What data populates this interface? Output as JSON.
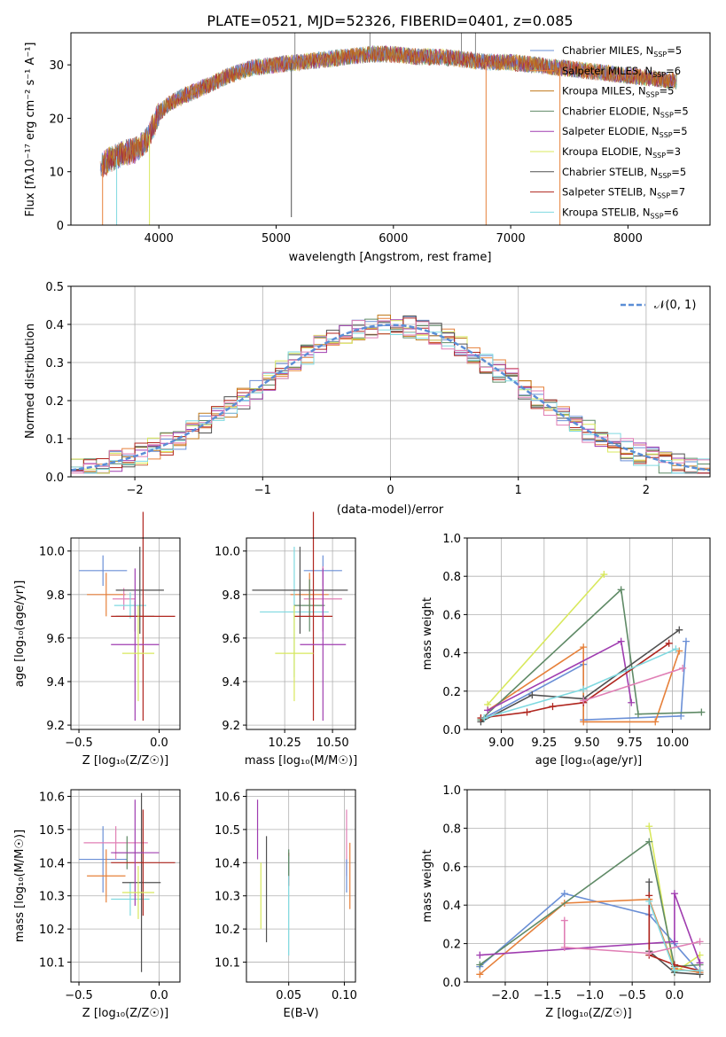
{
  "title": "PLATE=0521, MJD=52326, FIBERID=0401, z=0.085",
  "colors": {
    "c_miles": "#6a8fd6",
    "s_miles": "#e6803a",
    "k_miles": "#c07a1c",
    "c_elodie": "#5f8a66",
    "s_elodie": "#a03db0",
    "k_elodie": "#d8e85c",
    "c_stelib": "#505050",
    "s_stelib": "#b0261f",
    "k_stelib": "#7fd9e0",
    "pink": "#e07fb5"
  },
  "panels": {
    "spectrum": {
      "xlabel": "wavelength [Angstrom, rest frame]",
      "ylabel": "Flux [fλ10⁻¹⁷ erg cm⁻² s⁻¹ A⁻¹]",
      "xticks": [
        "4000",
        "5000",
        "6000",
        "7000",
        "8000"
      ],
      "yticks": [
        "0",
        "10",
        "20",
        "30"
      ],
      "legend": [
        {
          "label": "Chabrier MILES, N",
          "sub": "SSP",
          "tail": "=5",
          "color": "c_miles"
        },
        {
          "label": "Salpeter MILES, N",
          "sub": "SSP",
          "tail": "=6",
          "color": "s_miles"
        },
        {
          "label": "Kroupa MILES, N",
          "sub": "SSP",
          "tail": "=5",
          "color": "k_miles"
        },
        {
          "label": "Chabrier ELODIE, N",
          "sub": "SSP",
          "tail": "=5",
          "color": "c_elodie"
        },
        {
          "label": "Salpeter ELODIE, N",
          "sub": "SSP",
          "tail": "=5",
          "color": "s_elodie"
        },
        {
          "label": "Kroupa ELODIE, N",
          "sub": "SSP",
          "tail": "=3",
          "color": "k_elodie"
        },
        {
          "label": "Chabrier STELIB, N",
          "sub": "SSP",
          "tail": "=5",
          "color": "c_stelib"
        },
        {
          "label": "Salpeter STELIB, N",
          "sub": "SSP",
          "tail": "=7",
          "color": "s_stelib"
        },
        {
          "label": "Kroupa STELIB, N",
          "sub": "SSP",
          "tail": "=6",
          "color": "k_stelib"
        }
      ]
    },
    "hist": {
      "xlabel": "(data-model)/error",
      "ylabel": "Normed distribution",
      "xticks": [
        "−2",
        "−1",
        "0",
        "1",
        "2"
      ],
      "yticks": [
        "0.0",
        "0.1",
        "0.2",
        "0.3",
        "0.4",
        "0.5"
      ],
      "legend_label": "𝒩(0, 1)"
    },
    "z_age": {
      "xlabel": "Z [log₁₀(Z/Z☉)]",
      "ylabel": "age  [log₁₀(age/yr)]",
      "xticks": [
        "−0.5",
        "0.0"
      ],
      "yticks": [
        "9.2",
        "9.4",
        "9.6",
        "9.8",
        "10.0"
      ]
    },
    "mass_age": {
      "xlabel": "mass [log₁₀(M/M☉)]",
      "xticks": [
        "10.25",
        "10.50"
      ],
      "yticks": [
        "9.2",
        "9.4",
        "9.6",
        "9.8",
        "10.0"
      ]
    },
    "age_weight": {
      "xlabel": "age  [log₁₀(age/yr)]",
      "ylabel": "mass weight",
      "xticks": [
        "9.00",
        "9.25",
        "9.50",
        "9.75",
        "10.00"
      ],
      "yticks": [
        "0.0",
        "0.2",
        "0.4",
        "0.6",
        "0.8",
        "1.0"
      ]
    },
    "z_mass": {
      "xlabel": "Z [log₁₀(Z/Z☉)]",
      "ylabel": "mass [log₁₀(M/M☉)]",
      "xticks": [
        "−0.5",
        "0.0"
      ],
      "yticks": [
        "10.1",
        "10.2",
        "10.3",
        "10.4",
        "10.5",
        "10.6"
      ]
    },
    "ebv_mass": {
      "xlabel": "E(B-V)",
      "xticks": [
        "0.05",
        "0.10"
      ],
      "yticks": [
        "10.1",
        "10.2",
        "10.3",
        "10.4",
        "10.5",
        "10.6"
      ]
    },
    "z_weight": {
      "xlabel": "Z [log₁₀(Z/Z☉)]",
      "ylabel": "mass weight",
      "xticks": [
        "−2.0",
        "−1.5",
        "−1.0",
        "−0.5",
        "0.0"
      ],
      "yticks": [
        "0.0",
        "0.2",
        "0.4",
        "0.6",
        "0.8",
        "1.0"
      ]
    }
  },
  "chart_data": [
    {
      "type": "line",
      "title": "PLATE=0521, MJD=52326, FIBERID=0401, z=0.085",
      "xlabel": "wavelength [Angstrom, rest frame]",
      "ylabel": "Flux [fλ10⁻¹⁷ erg cm⁻² s⁻¹ A⁻¹]",
      "xlim": [
        3250,
        8700
      ],
      "ylim": [
        0,
        36
      ],
      "grid": false,
      "legend_position": "right",
      "continuum": {
        "x": [
          3500,
          3600,
          3700,
          3800,
          3900,
          4000,
          4100,
          4200,
          4400,
          4600,
          4800,
          5000,
          5200,
          5400,
          5600,
          5800,
          6000,
          6200,
          6400,
          6600,
          6800,
          7000,
          7200,
          7400,
          7600,
          7800,
          8000,
          8200,
          8400
        ],
        "y": [
          11,
          12.5,
          13.5,
          14,
          16,
          21,
          23,
          24,
          26,
          28,
          29.5,
          30,
          30.5,
          31,
          31.5,
          32,
          32,
          31.5,
          31.5,
          31,
          30.5,
          30.5,
          30,
          29.5,
          29,
          28.5,
          28,
          27.5,
          27
        ]
      }
    },
    {
      "type": "bar",
      "title": "",
      "xlabel": "(data-model)/error",
      "ylabel": "Normed distribution",
      "xlim": [
        -2.5,
        2.5
      ],
      "ylim": [
        0,
        0.5
      ],
      "grid": true,
      "bin_width": 0.1,
      "reference_curve": "N(0,1)",
      "series_count": 10
    },
    {
      "type": "scatter",
      "xlabel": "Z [log₁₀(Z/Z☉)]",
      "ylabel": "age  [log₁₀(age/yr)]",
      "xlim": [
        -0.55,
        0.13
      ],
      "ylim": [
        9.18,
        10.06
      ],
      "points": [
        {
          "x": -0.35,
          "y": 9.91,
          "xerr": 0.15,
          "yerr": 0.07,
          "color": "c_miles"
        },
        {
          "x": -0.33,
          "y": 9.8,
          "xerr": 0.12,
          "yerr": 0.1,
          "color": "s_miles"
        },
        {
          "x": -0.22,
          "y": 9.78,
          "xerr": 0.07,
          "yerr": 0.05,
          "color": "pink"
        },
        {
          "x": -0.18,
          "y": 9.75,
          "xerr": 0.1,
          "yerr": 0.06,
          "color": "k_stelib"
        },
        {
          "x": -0.15,
          "y": 9.7,
          "xerr": 0.12,
          "yerr": 0.07,
          "color": "c_elodie"
        },
        {
          "x": -0.12,
          "y": 9.82,
          "xerr": 0.15,
          "yerr": 0.2,
          "color": "c_stelib"
        },
        {
          "x": -0.1,
          "y": 9.7,
          "xerr": 0.2,
          "yerr": 0.48,
          "color": "s_stelib"
        },
        {
          "x": -0.15,
          "y": 9.57,
          "xerr": 0.15,
          "yerr": 0.35,
          "color": "s_elodie"
        },
        {
          "x": -0.13,
          "y": 9.53,
          "xerr": 0.1,
          "yerr": 0.22,
          "color": "k_elodie"
        }
      ]
    },
    {
      "type": "scatter",
      "xlabel": "mass [log₁₀(M/M☉)]",
      "xlim": [
        10.05,
        10.62
      ],
      "ylim": [
        9.18,
        10.06
      ],
      "points": [
        {
          "x": 10.45,
          "y": 9.91,
          "xerr": 0.1,
          "yerr": 0.07,
          "color": "c_miles"
        },
        {
          "x": 10.38,
          "y": 9.8,
          "xerr": 0.1,
          "yerr": 0.1,
          "color": "s_miles"
        },
        {
          "x": 10.45,
          "y": 9.78,
          "xerr": 0.1,
          "yerr": 0.15,
          "color": "pink"
        },
        {
          "x": 10.3,
          "y": 9.72,
          "xerr": 0.18,
          "yerr": 0.3,
          "color": "k_stelib"
        },
        {
          "x": 10.38,
          "y": 9.75,
          "xerr": 0.08,
          "yerr": 0.12,
          "color": "c_elodie"
        },
        {
          "x": 10.33,
          "y": 9.82,
          "xerr": 0.25,
          "yerr": 0.2,
          "color": "c_stelib"
        },
        {
          "x": 10.4,
          "y": 9.7,
          "xerr": 0.1,
          "yerr": 0.48,
          "color": "s_stelib"
        },
        {
          "x": 10.45,
          "y": 9.57,
          "xerr": 0.12,
          "yerr": 0.35,
          "color": "s_elodie"
        },
        {
          "x": 10.3,
          "y": 9.53,
          "xerr": 0.1,
          "yerr": 0.22,
          "color": "k_elodie"
        }
      ]
    },
    {
      "type": "line",
      "xlabel": "age  [log₁₀(age/yr)]",
      "ylabel": "mass weight",
      "xlim": [
        8.8,
        10.22
      ],
      "ylim": [
        0,
        1
      ],
      "series": [
        {
          "color": "c_miles",
          "x": [
            8.9,
            9.48,
            9.48,
            10.05,
            10.08
          ],
          "y": [
            0.06,
            0.34,
            0.05,
            0.07,
            0.46
          ]
        },
        {
          "color": "s_miles",
          "x": [
            8.92,
            9.48,
            9.48,
            9.9,
            10.04
          ],
          "y": [
            0.1,
            0.43,
            0.04,
            0.04,
            0.41
          ]
        },
        {
          "color": "k_elodie",
          "x": [
            8.92,
            9.6
          ],
          "y": [
            0.13,
            0.81
          ]
        },
        {
          "color": "c_elodie",
          "x": [
            8.88,
            9.7,
            9.8,
            10.17
          ],
          "y": [
            0.05,
            0.73,
            0.08,
            0.09
          ]
        },
        {
          "color": "s_elodie",
          "x": [
            8.92,
            9.7,
            9.76
          ],
          "y": [
            0.1,
            0.46,
            0.14
          ]
        },
        {
          "color": "c_stelib",
          "x": [
            8.88,
            9.18,
            9.48,
            10.04
          ],
          "y": [
            0.04,
            0.18,
            0.16,
            0.52
          ]
        },
        {
          "color": "s_stelib",
          "x": [
            8.88,
            9.15,
            9.3,
            9.48,
            9.98
          ],
          "y": [
            0.06,
            0.09,
            0.12,
            0.14,
            0.45
          ]
        },
        {
          "color": "k_stelib",
          "x": [
            8.9,
            9.48,
            10.02
          ],
          "y": [
            0.06,
            0.21,
            0.42
          ]
        },
        {
          "color": "pink",
          "x": [
            9.48,
            10.06
          ],
          "y": [
            0.15,
            0.32
          ]
        }
      ]
    },
    {
      "type": "scatter",
      "xlabel": "Z [log₁₀(Z/Z☉)]",
      "ylabel": "mass [log₁₀(M/M☉)]",
      "xlim": [
        -0.55,
        0.13
      ],
      "ylim": [
        10.04,
        10.62
      ],
      "points": [
        {
          "x": -0.35,
          "y": 10.41,
          "xerr": 0.15,
          "yerr": 0.1,
          "color": "c_miles"
        },
        {
          "x": -0.33,
          "y": 10.36,
          "xerr": 0.12,
          "yerr": 0.08,
          "color": "s_miles"
        },
        {
          "x": -0.27,
          "y": 10.46,
          "xerr": 0.2,
          "yerr": 0.05,
          "color": "pink"
        },
        {
          "x": -0.18,
          "y": 10.29,
          "xerr": 0.12,
          "yerr": 0.05,
          "color": "k_stelib"
        },
        {
          "x": -0.2,
          "y": 10.43,
          "xerr": 0.08,
          "yerr": 0.05,
          "color": "c_elodie"
        },
        {
          "x": -0.11,
          "y": 10.34,
          "xerr": 0.12,
          "yerr": 0.27,
          "color": "c_stelib"
        },
        {
          "x": -0.1,
          "y": 10.4,
          "xerr": 0.2,
          "yerr": 0.16,
          "color": "s_stelib"
        },
        {
          "x": -0.15,
          "y": 10.43,
          "xerr": 0.15,
          "yerr": 0.16,
          "color": "s_elodie"
        },
        {
          "x": -0.13,
          "y": 10.31,
          "xerr": 0.1,
          "yerr": 0.08,
          "color": "k_elodie"
        }
      ]
    },
    {
      "type": "scatter",
      "xlabel": "E(B-V)",
      "xlim": [
        0.012,
        0.11
      ],
      "ylim": [
        10.04,
        10.62
      ],
      "points": [
        {
          "x": 0.022,
          "y": 10.5,
          "yerr": 0.09,
          "color": "s_elodie"
        },
        {
          "x": 0.025,
          "y": 10.3,
          "yerr": 0.1,
          "color": "k_elodie"
        },
        {
          "x": 0.03,
          "y": 10.32,
          "yerr": 0.16,
          "color": "c_stelib"
        },
        {
          "x": 0.05,
          "y": 10.38,
          "yerr": 0.05,
          "color": "s_stelib"
        },
        {
          "x": 0.05,
          "y": 10.27,
          "yerr": 0.15,
          "color": "k_stelib"
        },
        {
          "x": 0.05,
          "y": 10.4,
          "yerr": 0.04,
          "color": "c_elodie"
        },
        {
          "x": 0.102,
          "y": 10.46,
          "yerr": 0.1,
          "color": "pink"
        },
        {
          "x": 0.102,
          "y": 10.36,
          "yerr": 0.05,
          "color": "c_miles"
        },
        {
          "x": 0.105,
          "y": 10.36,
          "yerr": 0.1,
          "color": "s_miles"
        }
      ]
    },
    {
      "type": "line",
      "xlabel": "Z [log₁₀(Z/Z☉)]",
      "ylabel": "mass weight",
      "xlim": [
        -2.45,
        0.42
      ],
      "ylim": [
        0,
        1
      ],
      "series": [
        {
          "color": "c_miles",
          "x": [
            -2.3,
            -1.3,
            -0.3,
            0.0,
            0.3
          ],
          "y": [
            0.08,
            0.46,
            0.35,
            0.2,
            0.05
          ]
        },
        {
          "color": "s_miles",
          "x": [
            -2.3,
            -1.3,
            -0.3,
            0.0,
            0.3
          ],
          "y": [
            0.04,
            0.41,
            0.43,
            0.07,
            0.05
          ]
        },
        {
          "color": "k_elodie",
          "x": [
            -0.3,
            0.0,
            0.3
          ],
          "y": [
            0.81,
            0.05,
            0.14
          ]
        },
        {
          "color": "c_elodie",
          "x": [
            -2.3,
            -0.3,
            0.0,
            0.3
          ],
          "y": [
            0.09,
            0.73,
            0.08,
            0.09
          ]
        },
        {
          "color": "s_elodie",
          "x": [
            -2.3,
            0.0,
            0.0,
            0.3
          ],
          "y": [
            0.14,
            0.21,
            0.46,
            0.1
          ]
        },
        {
          "color": "c_stelib",
          "x": [
            -0.3,
            -0.3,
            0.0,
            0.3
          ],
          "y": [
            0.52,
            0.16,
            0.05,
            0.04
          ]
        },
        {
          "color": "s_stelib",
          "x": [
            -0.3,
            -0.3,
            0.0,
            0.3
          ],
          "y": [
            0.45,
            0.14,
            0.09,
            0.06
          ]
        },
        {
          "color": "k_stelib",
          "x": [
            -0.3,
            0.0,
            0.3
          ],
          "y": [
            0.42,
            0.06,
            0.06
          ]
        },
        {
          "color": "pink",
          "x": [
            -1.3,
            -1.3,
            -0.3,
            0.3
          ],
          "y": [
            0.32,
            0.18,
            0.15,
            0.21
          ]
        }
      ]
    }
  ]
}
